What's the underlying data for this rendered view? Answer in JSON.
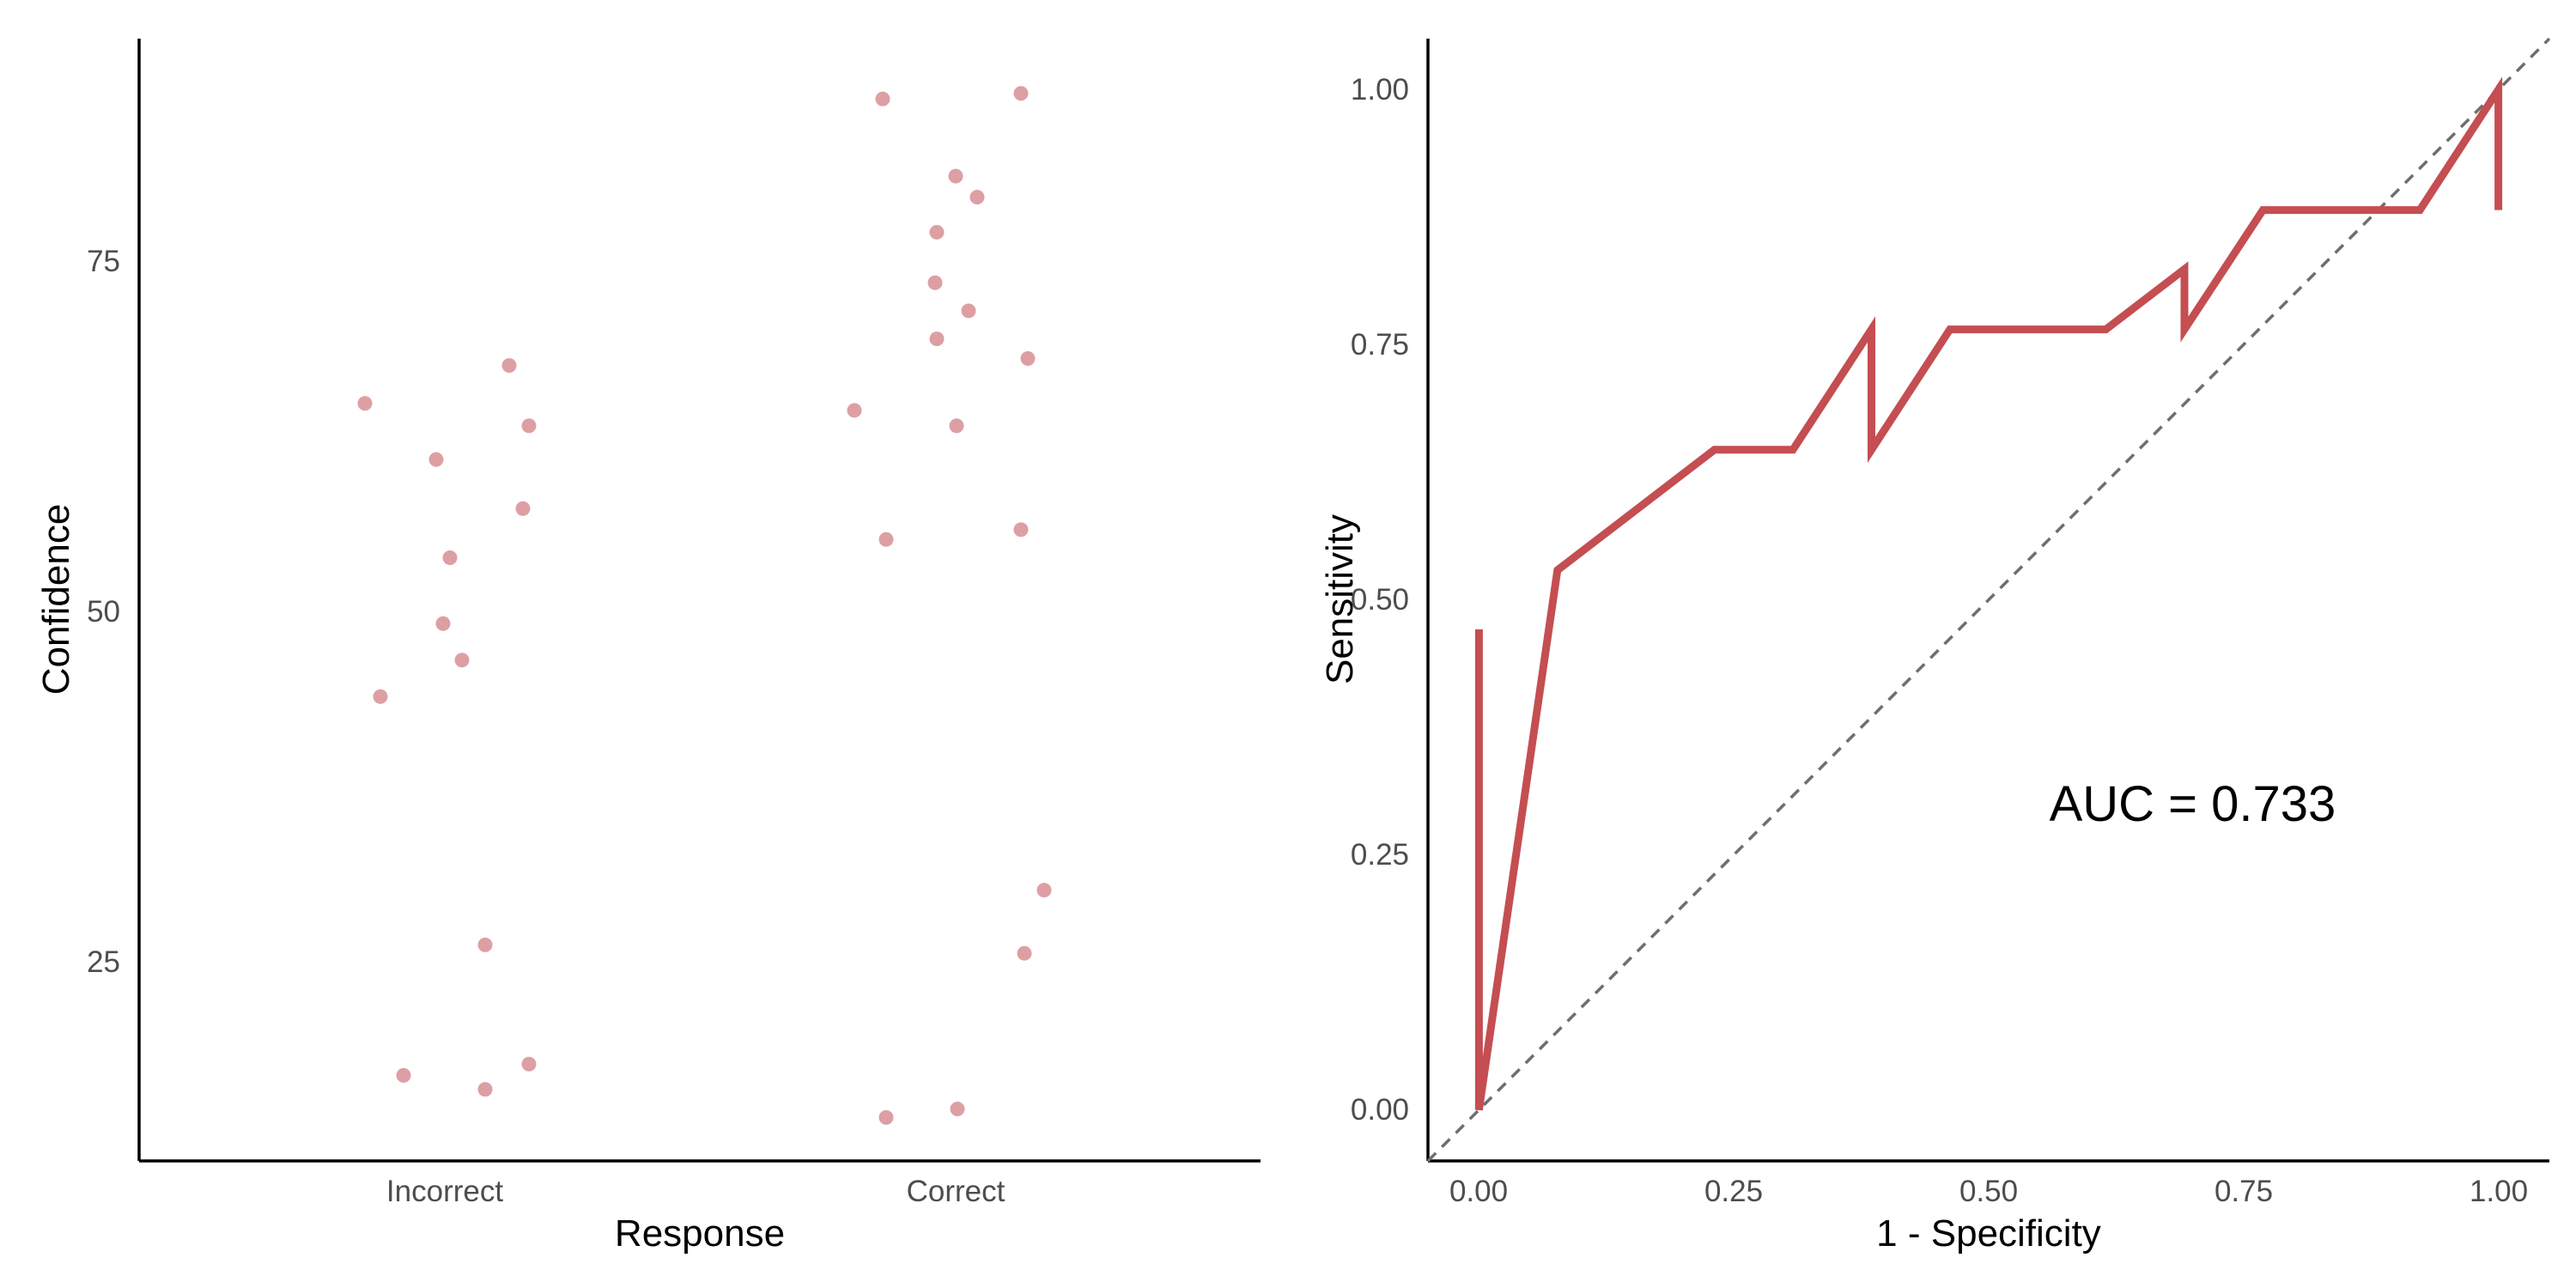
{
  "chart_data": [
    {
      "type": "scatter",
      "title": "",
      "xlabel": "Response",
      "ylabel": "Confidence",
      "categories": [
        "Incorrect",
        "Correct"
      ],
      "ylim": [
        11,
        91
      ],
      "y_ticks": [
        25,
        50,
        75
      ],
      "y_tick_labels": [
        "25",
        "50",
        "75"
      ],
      "grid": false,
      "point_color": "#d17f84",
      "points": [
        {
          "x": "Incorrect",
          "y": 65
        },
        {
          "x": "Incorrect",
          "y": 61
        },
        {
          "x": "Incorrect",
          "y": 67.7
        },
        {
          "x": "Incorrect",
          "y": 63.4
        },
        {
          "x": "Incorrect",
          "y": 57.5
        },
        {
          "x": "Incorrect",
          "y": 54
        },
        {
          "x": "Incorrect",
          "y": 49.3
        },
        {
          "x": "Incorrect",
          "y": 46.7
        },
        {
          "x": "Incorrect",
          "y": 44.1
        },
        {
          "x": "Incorrect",
          "y": 26.4
        },
        {
          "x": "Incorrect",
          "y": 17.1
        },
        {
          "x": "Incorrect",
          "y": 16.1
        },
        {
          "x": "Incorrect",
          "y": 17.9
        },
        {
          "x": "Correct",
          "y": 86.7
        },
        {
          "x": "Correct",
          "y": 87.1
        },
        {
          "x": "Correct",
          "y": 81.2
        },
        {
          "x": "Correct",
          "y": 79.7
        },
        {
          "x": "Correct",
          "y": 77.2
        },
        {
          "x": "Correct",
          "y": 73.6
        },
        {
          "x": "Correct",
          "y": 71.6
        },
        {
          "x": "Correct",
          "y": 69.6
        },
        {
          "x": "Correct",
          "y": 68.2
        },
        {
          "x": "Correct",
          "y": 64.5
        },
        {
          "x": "Correct",
          "y": 63.4
        },
        {
          "x": "Correct",
          "y": 56
        },
        {
          "x": "Correct",
          "y": 55.3
        },
        {
          "x": "Correct",
          "y": 30.3
        },
        {
          "x": "Correct",
          "y": 25.8
        },
        {
          "x": "Correct",
          "y": 14.7
        },
        {
          "x": "Correct",
          "y": 14.1
        }
      ]
    },
    {
      "type": "line",
      "title": "",
      "xlabel": "1 - Specificity",
      "ylabel": "Sensitivity",
      "xlim": [
        -0.05,
        1.05
      ],
      "ylim": [
        -0.05,
        1.05
      ],
      "x_ticks": [
        0,
        0.25,
        0.5,
        0.75,
        1
      ],
      "x_tick_labels": [
        "0.00",
        "0.25",
        "0.50",
        "0.75",
        "1.00"
      ],
      "y_ticks": [
        0,
        0.25,
        0.5,
        0.75,
        1
      ],
      "y_tick_labels": [
        "0.00",
        "0.25",
        "0.50",
        "0.75",
        "1.00"
      ],
      "grid": false,
      "line_color": "#c44e52",
      "reference_line_color": "#6e6e6e",
      "reference_line": {
        "x": [
          -0.05,
          1.05
        ],
        "y": [
          -0.05,
          1.05
        ]
      },
      "annotation": {
        "text": "AUC = 0.733",
        "x": 0.7,
        "y": 0.3
      },
      "series": [
        {
          "x": [
            0,
            0,
            0.077,
            0.231,
            0.308,
            0.385,
            0.385,
            0.462,
            0.615,
            0.692,
            0.692,
            0.769,
            0.923,
            1,
            1
          ],
          "y": [
            0.471,
            0,
            0.529,
            0.647,
            0.647,
            0.765,
            0.647,
            0.765,
            0.765,
            0.824,
            0.765,
            0.882,
            0.882,
            1,
            0.882
          ]
        }
      ]
    }
  ]
}
